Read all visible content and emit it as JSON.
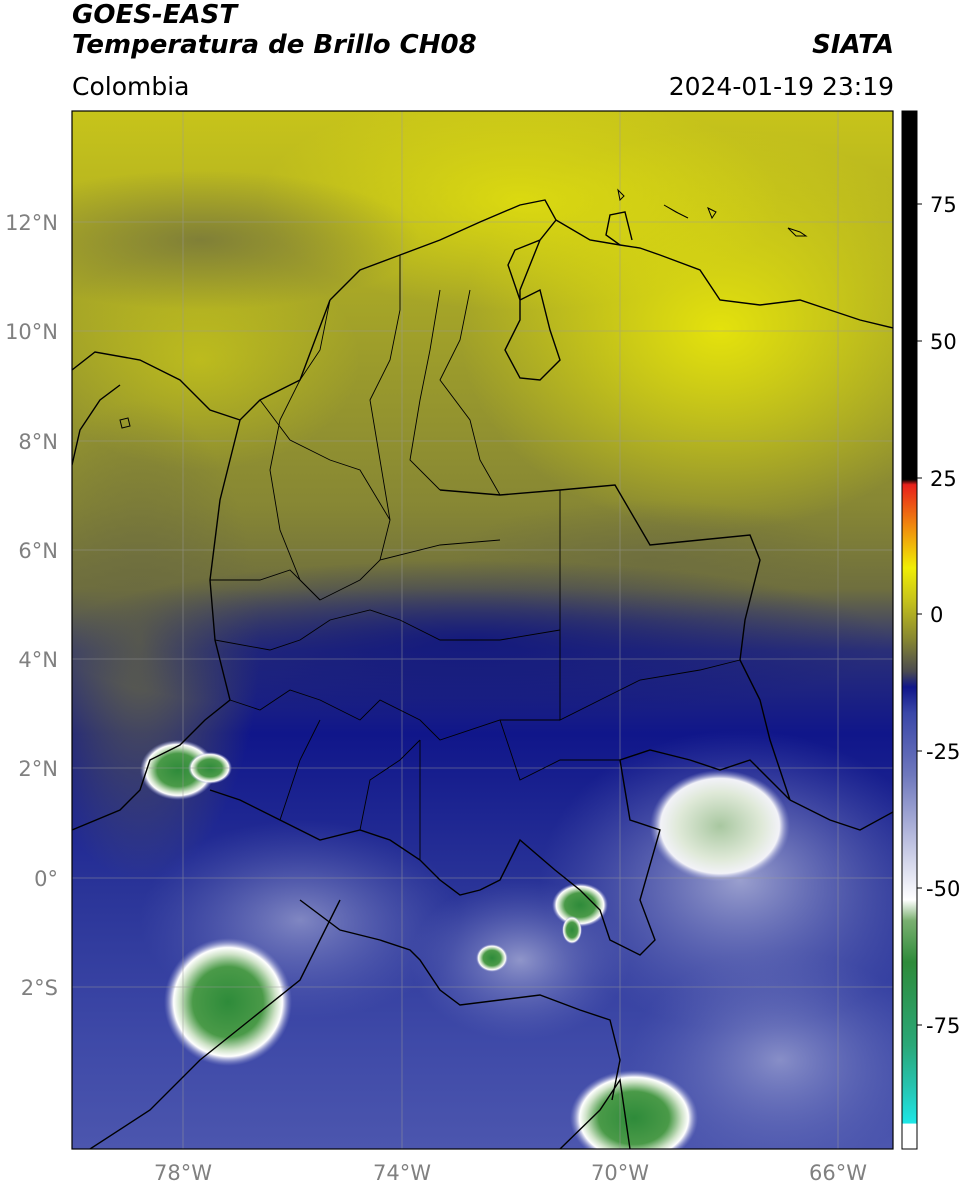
{
  "header": {
    "satellite": "GOES-EAST",
    "product": "Temperatura de Brillo CH08",
    "region": "Colombia",
    "organization": "SIATA",
    "datetime": "2024-01-19 23:19"
  },
  "map": {
    "lon_labels": [
      "78°W",
      "74°W",
      "70°W",
      "66°W"
    ],
    "lat_labels": [
      "12°N",
      "10°N",
      "8°N",
      "6°N",
      "4°N",
      "2°N",
      "0°",
      "2°S"
    ]
  },
  "colorbar": {
    "ticks": [
      "75",
      "50",
      "25",
      "0",
      "-25",
      "-50",
      "-75"
    ],
    "colors": {
      "black": "#000000",
      "red": "#e8201b",
      "orange": "#f08a0e",
      "yellow": "#e6e30a",
      "olive": "#858532",
      "gray": "#5a5a50",
      "navy": "#10168a",
      "blue": "#3a47a8",
      "lavender": "#b8bcde",
      "white": "#ffffff",
      "green": "#2e8b3a",
      "teal": "#26b89a",
      "cyan": "#1ee6e6"
    }
  }
}
